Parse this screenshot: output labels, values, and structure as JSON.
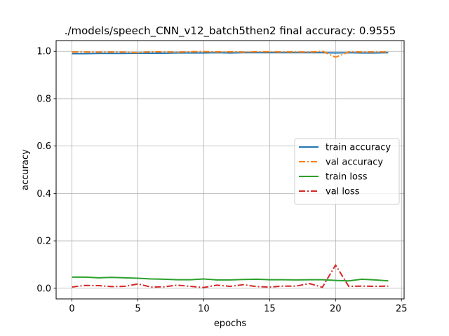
{
  "chart_data": {
    "type": "line",
    "title": "./models/speech_CNN_v12_batch5then2 final accuracy: 0.9555",
    "xlabel": "epochs",
    "ylabel": "accuracy",
    "xlim": [
      -1.2,
      25.2
    ],
    "ylim": [
      -0.045,
      1.045
    ],
    "xticks": [
      0,
      5,
      10,
      15,
      20,
      25
    ],
    "yticks": [
      0.0,
      0.2,
      0.4,
      0.6,
      0.8,
      1.0
    ],
    "xtick_labels": [
      "0",
      "5",
      "10",
      "15",
      "20",
      "25"
    ],
    "ytick_labels": [
      "0.0",
      "0.2",
      "0.4",
      "0.6",
      "0.8",
      "1.0"
    ],
    "grid": true,
    "legend_position": "center-right",
    "x": [
      0,
      1,
      2,
      3,
      4,
      5,
      6,
      7,
      8,
      9,
      10,
      11,
      12,
      13,
      14,
      15,
      16,
      17,
      18,
      19,
      20,
      21,
      22,
      23,
      24
    ],
    "series": [
      {
        "name": "train accuracy",
        "color": "#1f77b4",
        "style": "solid",
        "values": [
          0.99,
          0.99,
          0.991,
          0.991,
          0.991,
          0.992,
          0.992,
          0.992,
          0.993,
          0.993,
          0.993,
          0.994,
          0.993,
          0.994,
          0.994,
          0.994,
          0.994,
          0.994,
          0.994,
          0.994,
          0.993,
          0.994,
          0.993,
          0.993,
          0.994
        ]
      },
      {
        "name": "val accuracy",
        "color": "#ff7f0e",
        "style": "dashdot",
        "values": [
          0.997,
          0.997,
          0.996,
          0.997,
          0.996,
          0.994,
          0.998,
          0.997,
          0.996,
          0.998,
          0.999,
          0.997,
          0.998,
          0.996,
          0.998,
          0.998,
          0.997,
          0.997,
          0.996,
          1.0,
          0.975,
          0.997,
          0.997,
          0.997,
          0.997
        ]
      },
      {
        "name": "train loss",
        "color": "#2ca02c",
        "style": "solid",
        "values": [
          0.047,
          0.047,
          0.044,
          0.046,
          0.044,
          0.042,
          0.039,
          0.038,
          0.036,
          0.036,
          0.039,
          0.035,
          0.035,
          0.037,
          0.038,
          0.036,
          0.036,
          0.035,
          0.036,
          0.036,
          0.033,
          0.031,
          0.038,
          0.035,
          0.031
        ]
      },
      {
        "name": "val loss",
        "color": "#d62728",
        "style": "dashdot",
        "values": [
          0.005,
          0.012,
          0.011,
          0.007,
          0.008,
          0.018,
          0.005,
          0.006,
          0.013,
          0.008,
          0.003,
          0.013,
          0.008,
          0.015,
          0.007,
          0.005,
          0.009,
          0.009,
          0.02,
          0.004,
          0.098,
          0.008,
          0.009,
          0.008,
          0.009
        ]
      }
    ]
  }
}
